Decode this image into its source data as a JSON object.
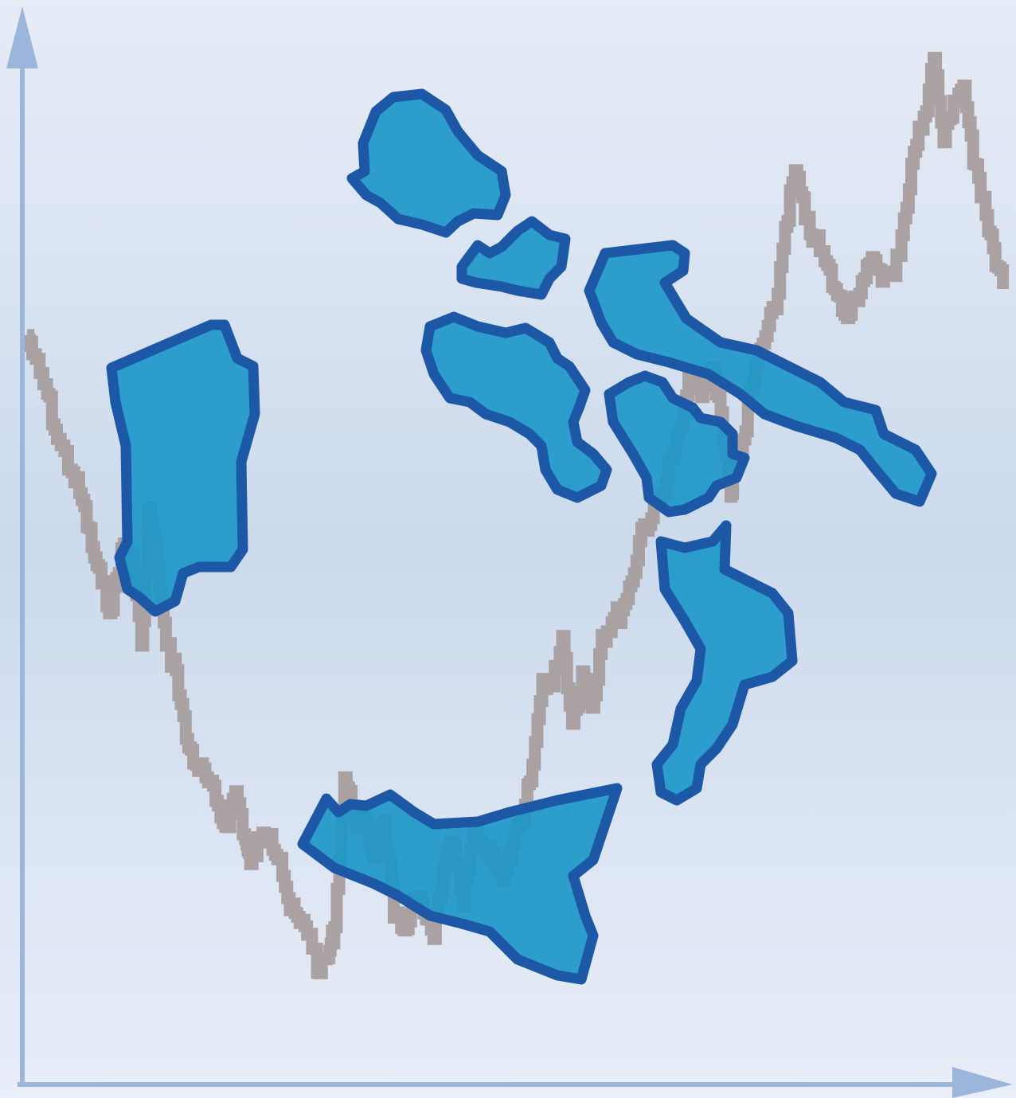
{
  "colors": {
    "background_top": "#e7ecf6",
    "background_middle": "#cbdaec",
    "background_bottom": "#e9eef8",
    "axis": "#9bb6da",
    "line": "#a69b9b",
    "region_fill": "#1996c8",
    "region_outline": "#1d58a6"
  },
  "chart_data": {
    "type": "line",
    "title": "",
    "xlabel": "",
    "ylabel": "",
    "xlim": [
      0,
      100
    ],
    "ylim": [
      0,
      100
    ],
    "grid": false,
    "legend": "none",
    "series": [
      {
        "x": [
          0.5,
          1.0,
          2.5,
          3.5,
          5.0,
          6.0,
          7.0,
          8.0,
          9.0,
          10.0,
          11.0,
          12.0,
          12.8,
          13.6,
          14.5,
          15.5,
          16.5,
          17.5,
          18.5,
          19.5,
          20.5,
          21.5,
          22.5,
          23.0,
          24.0,
          25.0,
          26.0,
          27.0,
          28.0,
          29.0,
          30.0,
          31.0,
          31.5,
          32.5,
          33.5,
          34.5,
          35.5,
          36.5,
          37.5,
          38.5,
          39.5,
          40.5,
          41.5,
          42.5,
          43.5,
          44.5,
          45.5,
          46.5,
          47.5,
          48.5,
          49.5,
          50.5,
          51.5,
          52.5,
          53.5,
          54.5,
          55.5,
          56.5,
          57.5,
          58.5,
          59.5,
          60.5,
          61.5,
          62.5,
          63.5,
          64.5,
          65.5,
          66.5,
          67.5,
          68.5,
          69.5,
          70.5,
          71.5,
          72.0,
          73.0,
          74.0,
          75.0,
          76.0,
          77.0,
          78.0,
          79.0,
          80.0,
          81.0,
          82.0,
          83.0,
          84.0,
          85.0,
          86.0,
          87.0,
          88.0,
          89.0,
          90.0,
          91.0,
          92.0,
          93.0,
          94.0,
          95.0,
          96.0,
          97.0,
          98.0,
          99.0
        ],
        "y": [
          70.2,
          68.4,
          64.7,
          60.5,
          57.4,
          54.8,
          50.4,
          47.0,
          44.5,
          50.3,
          49.7,
          41.2,
          54.1,
          48.6,
          41.2,
          38.9,
          32.5,
          30.1,
          28.9,
          26.7,
          24.3,
          27.6,
          23.1,
          20.8,
          23.2,
          23.6,
          21.4,
          16.5,
          15.3,
          14.3,
          10.6,
          12.7,
          14.9,
          28.9,
          24.9,
          24.9,
          21.4,
          24.9,
          15.8,
          14.6,
          17.6,
          16.2,
          13.8,
          20.4,
          22.5,
          16.9,
          23.7,
          22.5,
          21.9,
          19.2,
          22.6,
          24.6,
          30.1,
          38.1,
          37.4,
          42.1,
          33.9,
          38.8,
          35.4,
          42.2,
          43.4,
          44.5,
          47.2,
          52.2,
          53.1,
          55.4,
          58.6,
          61.7,
          66.7,
          64.4,
          67.2,
          63.0,
          55.1,
          58.7,
          61.2,
          67.4,
          70.1,
          72.6,
          80.3,
          85.6,
          81.0,
          79.1,
          77.1,
          74.5,
          72.1,
          73.8,
          75.5,
          77.2,
          75.7,
          75.7,
          81.1,
          87.3,
          90.6,
          96.1,
          88.2,
          92.1,
          93.5,
          86.2,
          83.1,
          78.3,
          74.5
        ]
      }
    ]
  }
}
